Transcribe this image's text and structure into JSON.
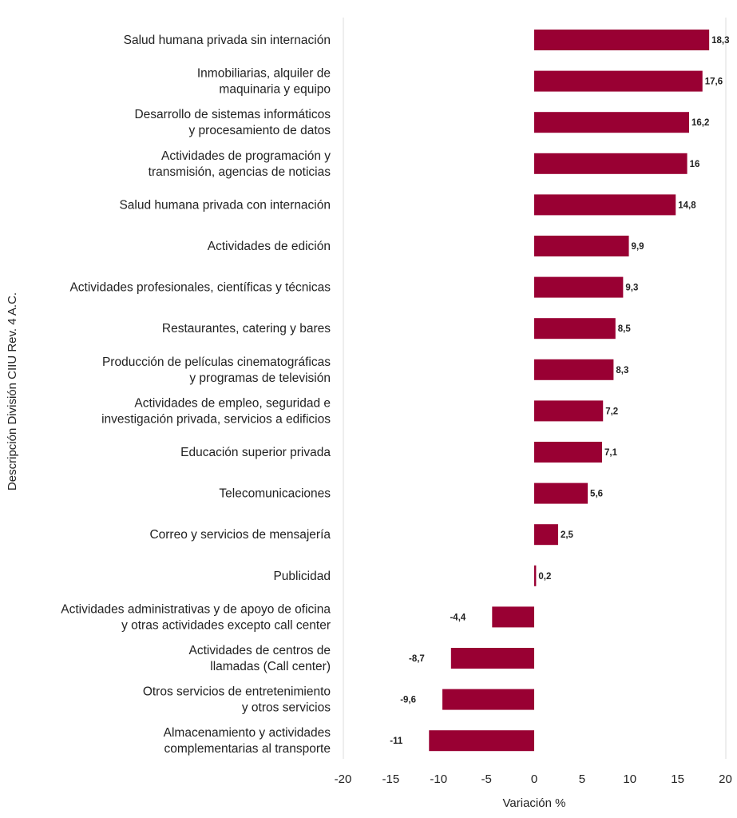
{
  "chart_data": {
    "type": "bar",
    "orientation": "horizontal",
    "xlabel": "Variación %",
    "ylabel": "Descripción División CIIU Rev. 4 A.C.",
    "xlim": [
      -20,
      20
    ],
    "xticks": [
      "-20",
      "-15",
      "-10",
      "-5",
      "0",
      "5",
      "10",
      "15",
      "20"
    ],
    "grid": false,
    "bar_color": "#990033",
    "categories": [
      [
        "Salud humana privada sin internación"
      ],
      [
        "Inmobiliarias, alquiler de",
        "maquinaria y equipo"
      ],
      [
        "Desarrollo de sistemas informáticos",
        "y procesamiento de datos"
      ],
      [
        "Actividades de programación y",
        "transmisión, agencias de noticias"
      ],
      [
        "Salud humana privada con internación"
      ],
      [
        "Actividades de edición"
      ],
      [
        "Actividades profesionales, científicas y técnicas"
      ],
      [
        "Restaurantes, catering y bares"
      ],
      [
        "Producción de películas cinematográficas",
        "y programas de televisión"
      ],
      [
        "Actividades de empleo, seguridad e",
        "investigación privada, servicios a edificios"
      ],
      [
        "Educación superior privada"
      ],
      [
        "Telecomunicaciones"
      ],
      [
        "Correo y servicios de mensajería"
      ],
      [
        "Publicidad"
      ],
      [
        "Actividades administrativas y de apoyo de oficina",
        "y otras actividades excepto call center"
      ],
      [
        "Actividades de centros de",
        "llamadas (Call center)"
      ],
      [
        "Otros servicios de entretenimiento",
        "y otros servicios"
      ],
      [
        "Almacenamiento y actividades",
        "complementarias al transporte"
      ]
    ],
    "values": [
      18.3,
      17.6,
      16.2,
      16,
      14.8,
      9.9,
      9.3,
      8.5,
      8.3,
      7.2,
      7.1,
      5.6,
      2.5,
      0.2,
      -4.4,
      -8.7,
      -9.6,
      -11
    ],
    "value_labels": [
      "18,3",
      "17,6",
      "16,2",
      "16",
      "14,8",
      "9,9",
      "9,3",
      "8,5",
      "8,3",
      "7,2",
      "7,1",
      "5,6",
      "2,5",
      "0,2",
      "-4,4",
      "-8,7",
      "-9,6",
      "-11"
    ]
  }
}
